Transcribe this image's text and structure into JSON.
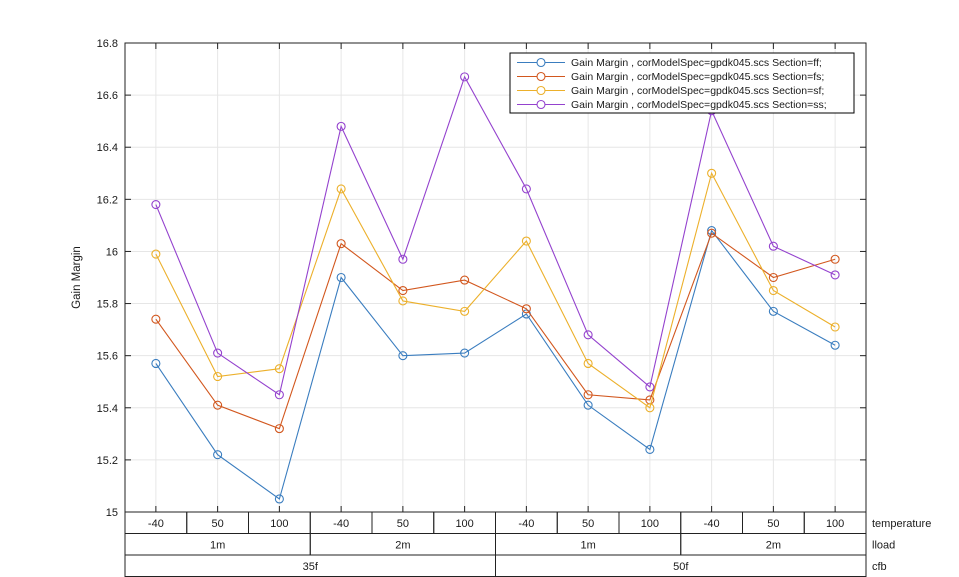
{
  "figure": {
    "background": "#ffffff",
    "axis_color": "#222222",
    "grid_color": "#e6e6e6",
    "text_color": "#1a1a1a"
  },
  "chart_data": {
    "type": "line",
    "title": "",
    "xlabel": "",
    "ylabel": "Gain Margin",
    "ylim": [
      15,
      16.8
    ],
    "yticks": [
      15,
      15.2,
      15.4,
      15.6,
      15.8,
      16,
      16.2,
      16.4,
      16.6,
      16.8
    ],
    "ytick_labels": [
      "15",
      "15.2",
      "15.4",
      "15.6",
      "15.8",
      "16",
      "16.2",
      "16.4",
      "16.6",
      "16.8"
    ],
    "grid": true,
    "marker": "circle",
    "legend_position": "top-right",
    "x_tiers": [
      {
        "name": "temperature",
        "span": 1,
        "labels": [
          "-40",
          "50",
          "100",
          "-40",
          "50",
          "100",
          "-40",
          "50",
          "100",
          "-40",
          "50",
          "100"
        ]
      },
      {
        "name": "lload",
        "span": 3,
        "labels": [
          "1m",
          "2m",
          "1m",
          "2m"
        ]
      },
      {
        "name": "cfb",
        "span": 6,
        "labels": [
          "35f",
          "50f"
        ]
      }
    ],
    "series": [
      {
        "name": "Gain Margin , corModelSpec=gpdk045.scs Section=ff;",
        "color": "#3a7dbf",
        "values": [
          15.57,
          15.22,
          15.05,
          15.9,
          15.6,
          15.61,
          15.76,
          15.41,
          15.24,
          16.08,
          15.77,
          15.64
        ]
      },
      {
        "name": "Gain Margin , corModelSpec=gpdk045.scs Section=fs;",
        "color": "#d2571e",
        "values": [
          15.74,
          15.41,
          15.32,
          16.03,
          15.85,
          15.89,
          15.78,
          15.45,
          15.43,
          16.07,
          15.9,
          15.97
        ]
      },
      {
        "name": "Gain Margin , corModelSpec=gpdk045.scs Section=sf;",
        "color": "#ecb02b",
        "values": [
          15.99,
          15.52,
          15.55,
          16.24,
          15.81,
          15.77,
          16.04,
          15.57,
          15.4,
          16.3,
          15.85,
          15.71
        ]
      },
      {
        "name": "Gain Margin , corModelSpec=gpdk045.scs Section=ss;",
        "color": "#9442ce",
        "values": [
          16.18,
          15.61,
          15.45,
          16.48,
          15.97,
          16.67,
          16.24,
          15.68,
          15.48,
          16.54,
          16.02,
          15.91
        ]
      }
    ]
  }
}
